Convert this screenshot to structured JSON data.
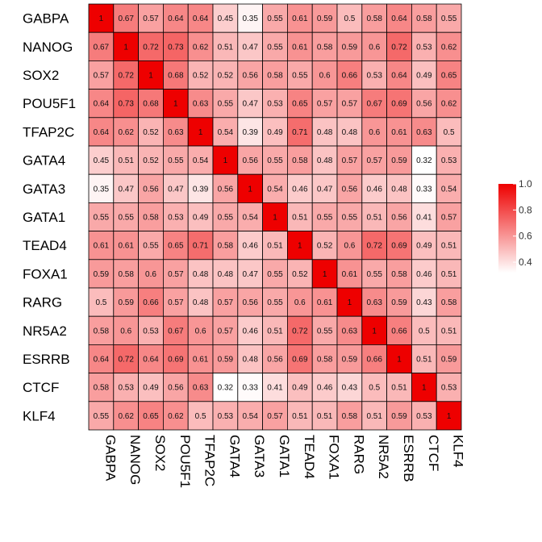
{
  "chart_data": {
    "type": "heatmap",
    "labels": [
      "GABPA",
      "NANOG",
      "SOX2",
      "POU5F1",
      "TFAP2C",
      "GATA4",
      "GATA3",
      "GATA1",
      "TEAD4",
      "FOXA1",
      "RARG",
      "NR5A2",
      "ESRRB",
      "CTCF",
      "KLF4"
    ],
    "values": [
      [
        1,
        0.67,
        0.57,
        0.64,
        0.64,
        0.45,
        0.35,
        0.55,
        0.61,
        0.59,
        0.5,
        0.58,
        0.64,
        0.58,
        0.55
      ],
      [
        0.67,
        1,
        0.72,
        0.73,
        0.62,
        0.51,
        0.47,
        0.55,
        0.61,
        0.58,
        0.59,
        0.6,
        0.72,
        0.53,
        0.62
      ],
      [
        0.57,
        0.72,
        1,
        0.68,
        0.52,
        0.52,
        0.56,
        0.58,
        0.55,
        0.6,
        0.66,
        0.53,
        0.64,
        0.49,
        0.65
      ],
      [
        0.64,
        0.73,
        0.68,
        1,
        0.63,
        0.55,
        0.47,
        0.53,
        0.65,
        0.57,
        0.57,
        0.67,
        0.69,
        0.56,
        0.62
      ],
      [
        0.64,
        0.62,
        0.52,
        0.63,
        1,
        0.54,
        0.39,
        0.49,
        0.71,
        0.48,
        0.48,
        0.6,
        0.61,
        0.63,
        0.5
      ],
      [
        0.45,
        0.51,
        0.52,
        0.55,
        0.54,
        1,
        0.56,
        0.55,
        0.58,
        0.48,
        0.57,
        0.57,
        0.59,
        0.32,
        0.53
      ],
      [
        0.35,
        0.47,
        0.56,
        0.47,
        0.39,
        0.56,
        1,
        0.54,
        0.46,
        0.47,
        0.56,
        0.46,
        0.48,
        0.33,
        0.54
      ],
      [
        0.55,
        0.55,
        0.58,
        0.53,
        0.49,
        0.55,
        0.54,
        1,
        0.51,
        0.55,
        0.55,
        0.51,
        0.56,
        0.41,
        0.57
      ],
      [
        0.61,
        0.61,
        0.55,
        0.65,
        0.71,
        0.58,
        0.46,
        0.51,
        1,
        0.52,
        0.6,
        0.72,
        0.69,
        0.49,
        0.51
      ],
      [
        0.59,
        0.58,
        0.6,
        0.57,
        0.48,
        0.48,
        0.47,
        0.55,
        0.52,
        1,
        0.61,
        0.55,
        0.58,
        0.46,
        0.51
      ],
      [
        0.5,
        0.59,
        0.66,
        0.57,
        0.48,
        0.57,
        0.56,
        0.55,
        0.6,
        0.61,
        1,
        0.63,
        0.59,
        0.43,
        0.58
      ],
      [
        0.58,
        0.6,
        0.53,
        0.67,
        0.6,
        0.57,
        0.46,
        0.51,
        0.72,
        0.55,
        0.63,
        1,
        0.66,
        0.5,
        0.51
      ],
      [
        0.64,
        0.72,
        0.64,
        0.69,
        0.61,
        0.59,
        0.48,
        0.56,
        0.69,
        0.58,
        0.59,
        0.66,
        1,
        0.51,
        0.59
      ],
      [
        0.58,
        0.53,
        0.49,
        0.56,
        0.63,
        0.32,
        0.33,
        0.41,
        0.49,
        0.46,
        0.43,
        0.5,
        0.51,
        1,
        0.53
      ],
      [
        0.55,
        0.62,
        0.65,
        0.62,
        0.5,
        0.53,
        0.54,
        0.57,
        0.51,
        0.51,
        0.58,
        0.51,
        0.59,
        0.53,
        1
      ]
    ],
    "color_low": "#ffffff",
    "color_high": "#ee0000",
    "value_range": [
      0.32,
      1.0
    ],
    "legend": {
      "position": "right",
      "ticks": [
        "1.0",
        "0.8",
        "0.6",
        "0.4"
      ],
      "tick_values": [
        1.0,
        0.8,
        0.6,
        0.4
      ]
    }
  }
}
